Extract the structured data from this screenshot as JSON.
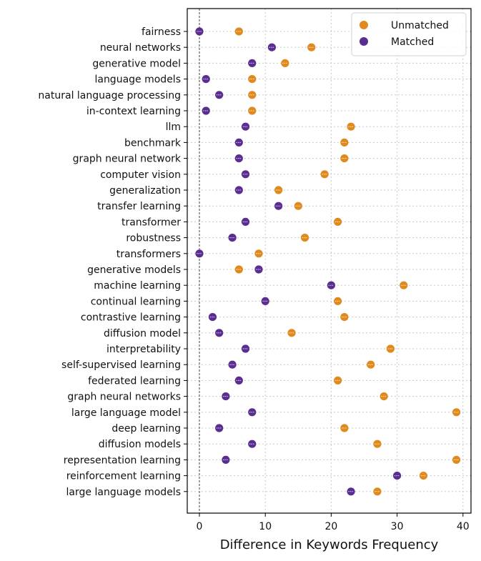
{
  "chart_data": {
    "type": "scatter",
    "xlabel": "Difference in Keywords Frequency",
    "ylabel": "",
    "xlim": [
      -2,
      41
    ],
    "xticks": [
      0,
      10,
      20,
      30,
      40
    ],
    "grid": true,
    "legend_position": "top-right",
    "categories": [
      "fairness",
      "neural networks",
      "generative model",
      "language models",
      "natural language processing",
      "in-context learning",
      "llm",
      "benchmark",
      "graph neural network",
      "computer vision",
      "generalization",
      "transfer learning",
      "transformer",
      "robustness",
      "transformers",
      "generative models",
      "machine learning",
      "continual learning",
      "contrastive learning",
      "diffusion model",
      "interpretability",
      "self-supervised learning",
      "federated learning",
      "graph neural networks",
      "large language model",
      "deep learning",
      "diffusion models",
      "representation learning",
      "reinforcement learning",
      "large language models"
    ],
    "series": [
      {
        "name": "Unmatched",
        "color": "#e08a1e",
        "values": [
          6,
          17,
          13,
          8,
          8,
          8,
          23,
          22,
          22,
          19,
          12,
          15,
          21,
          16,
          9,
          6,
          31,
          21,
          22,
          14,
          29,
          26,
          21,
          28,
          39,
          22,
          27,
          39,
          34,
          27
        ]
      },
      {
        "name": "Matched",
        "color": "#5a2d91",
        "values": [
          0,
          11,
          8,
          1,
          3,
          1,
          7,
          6,
          6,
          7,
          6,
          12,
          7,
          5,
          0,
          9,
          20,
          10,
          2,
          3,
          7,
          5,
          6,
          4,
          8,
          3,
          8,
          4,
          30,
          23
        ]
      }
    ],
    "zero_line": 0
  }
}
